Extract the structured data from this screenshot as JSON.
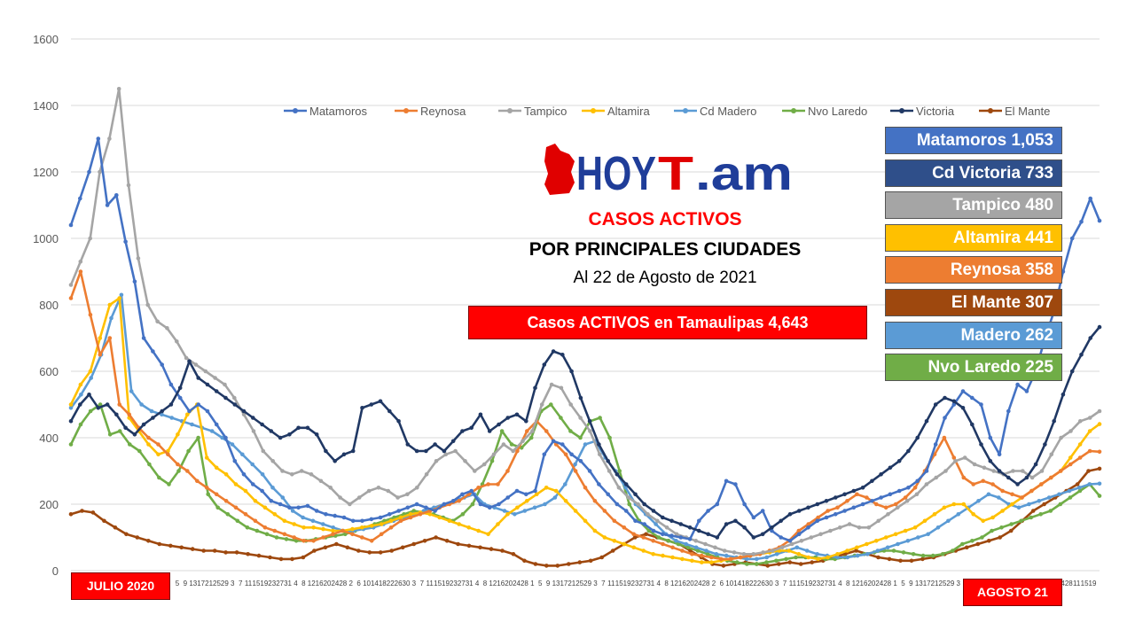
{
  "chart_data": {
    "type": "line",
    "ylim": [
      0,
      1600
    ],
    "yticks": [
      0,
      200,
      400,
      600,
      800,
      1000,
      1200,
      1400,
      1600
    ],
    "x_tick_labels": [
      "5",
      "9",
      "13",
      "17",
      "21",
      "25",
      "29",
      "3",
      "7",
      "11",
      "15",
      "19",
      "23",
      "27",
      "31",
      "4",
      "8",
      "12",
      "16",
      "20",
      "24",
      "28",
      "2",
      "6",
      "10",
      "14",
      "18",
      "22",
      "26",
      "30",
      "3",
      "7",
      "11",
      "15",
      "19",
      "23",
      "27",
      "31",
      "4",
      "8",
      "12",
      "16",
      "20",
      "24",
      "28",
      "1",
      "5",
      "9",
      "13",
      "17",
      "21",
      "25",
      "29",
      "3",
      "7",
      "11",
      "15",
      "19",
      "23",
      "27",
      "31",
      "4",
      "8",
      "12",
      "16",
      "20",
      "24",
      "28",
      "2",
      "6",
      "10",
      "14",
      "18",
      "22",
      "26",
      "30",
      "3",
      "7",
      "11",
      "15",
      "19",
      "23",
      "27",
      "31",
      "4",
      "8",
      "12",
      "16",
      "20",
      "24",
      "28",
      "1",
      "5",
      "9",
      "13",
      "17",
      "21",
      "25",
      "29",
      "3",
      "7",
      "11",
      "15",
      "19",
      "23",
      "27",
      "31",
      "4",
      "8",
      "12",
      "16",
      "20",
      "24",
      "28",
      "11",
      "15",
      "19"
    ],
    "grid": true,
    "legend_position": "top",
    "series": [
      {
        "name": "Matamoros",
        "color": "#4472c4",
        "values": [
          1040,
          1120,
          1200,
          1300,
          1100,
          1130,
          990,
          870,
          700,
          660,
          620,
          560,
          520,
          480,
          500,
          480,
          440,
          400,
          330,
          290,
          260,
          240,
          210,
          200,
          190,
          190,
          195,
          180,
          170,
          165,
          160,
          150,
          150,
          155,
          160,
          170,
          180,
          190,
          200,
          190,
          180,
          200,
          210,
          230,
          240,
          200,
          190,
          200,
          220,
          240,
          230,
          240,
          350,
          390,
          380,
          350,
          330,
          300,
          260,
          230,
          200,
          180,
          150,
          140,
          120,
          110,
          105,
          100,
          95,
          150,
          180,
          200,
          270,
          260,
          200,
          160,
          180,
          120,
          100,
          90,
          110,
          130,
          150,
          160,
          170,
          180,
          190,
          200,
          210,
          220,
          230,
          240,
          250,
          270,
          300,
          380,
          460,
          500,
          540,
          520,
          500,
          400,
          350,
          480,
          560,
          540,
          600,
          700,
          780,
          900,
          1000,
          1050,
          1120,
          1053
        ]
      },
      {
        "name": "Reynosa",
        "color": "#ed7d31",
        "values": [
          820,
          900,
          770,
          650,
          700,
          500,
          470,
          430,
          400,
          380,
          350,
          320,
          300,
          270,
          250,
          230,
          210,
          190,
          170,
          150,
          130,
          120,
          110,
          100,
          90,
          90,
          100,
          110,
          120,
          110,
          100,
          90,
          110,
          130,
          150,
          160,
          170,
          180,
          190,
          200,
          210,
          230,
          250,
          260,
          260,
          300,
          360,
          420,
          450,
          420,
          380,
          350,
          300,
          250,
          210,
          180,
          150,
          130,
          110,
          100,
          90,
          80,
          70,
          60,
          50,
          45,
          40,
          35,
          35,
          40,
          45,
          50,
          60,
          70,
          90,
          120,
          140,
          160,
          180,
          190,
          210,
          230,
          220,
          200,
          190,
          200,
          220,
          250,
          300,
          350,
          400,
          340,
          280,
          260,
          270,
          260,
          240,
          230,
          220,
          240,
          260,
          280,
          300,
          320,
          340,
          360,
          358
        ]
      },
      {
        "name": "Tampico",
        "color": "#a5a5a5",
        "values": [
          860,
          930,
          1000,
          1200,
          1300,
          1450,
          1160,
          940,
          800,
          750,
          730,
          690,
          640,
          620,
          600,
          580,
          560,
          520,
          470,
          420,
          360,
          330,
          300,
          290,
          300,
          290,
          270,
          250,
          220,
          200,
          220,
          240,
          250,
          240,
          220,
          230,
          250,
          290,
          330,
          350,
          360,
          330,
          300,
          320,
          350,
          380,
          360,
          390,
          420,
          500,
          560,
          550,
          500,
          460,
          420,
          350,
          300,
          250,
          220,
          200,
          170,
          150,
          130,
          110,
          100,
          90,
          80,
          70,
          60,
          55,
          50,
          50,
          55,
          60,
          70,
          80,
          90,
          100,
          110,
          120,
          130,
          140,
          130,
          130,
          150,
          170,
          190,
          210,
          230,
          260,
          280,
          300,
          330,
          340,
          320,
          310,
          300,
          290,
          300,
          300,
          280,
          300,
          350,
          400,
          420,
          450,
          460,
          480
        ]
      },
      {
        "name": "Altamira",
        "color": "#ffc000",
        "values": [
          500,
          560,
          600,
          700,
          800,
          820,
          460,
          420,
          380,
          350,
          360,
          410,
          470,
          500,
          340,
          310,
          290,
          260,
          240,
          210,
          190,
          170,
          150,
          140,
          130,
          130,
          125,
          120,
          120,
          125,
          130,
          135,
          140,
          150,
          160,
          170,
          175,
          170,
          160,
          150,
          140,
          130,
          120,
          110,
          140,
          170,
          190,
          210,
          230,
          250,
          240,
          210,
          180,
          150,
          120,
          100,
          90,
          80,
          70,
          60,
          50,
          45,
          40,
          35,
          30,
          25,
          25,
          30,
          35,
          40,
          45,
          50,
          55,
          60,
          60,
          50,
          40,
          35,
          40,
          50,
          60,
          70,
          80,
          90,
          100,
          110,
          120,
          130,
          150,
          170,
          190,
          200,
          200,
          170,
          150,
          160,
          180,
          200,
          220,
          240,
          260,
          280,
          300,
          340,
          380,
          420,
          441
        ]
      },
      {
        "name": "Cd Madero",
        "color": "#5b9bd5",
        "values": [
          490,
          530,
          580,
          650,
          760,
          830,
          540,
          500,
          480,
          470,
          460,
          450,
          440,
          430,
          420,
          400,
          380,
          350,
          320,
          290,
          250,
          220,
          180,
          160,
          150,
          140,
          130,
          120,
          120,
          125,
          130,
          140,
          150,
          160,
          170,
          180,
          190,
          200,
          210,
          220,
          230,
          200,
          190,
          180,
          170,
          180,
          190,
          200,
          220,
          260,
          320,
          380,
          390,
          340,
          300,
          250,
          200,
          170,
          140,
          110,
          90,
          80,
          70,
          60,
          50,
          45,
          40,
          35,
          35,
          40,
          50,
          60,
          70,
          60,
          50,
          45,
          40,
          40,
          45,
          50,
          60,
          70,
          80,
          90,
          100,
          110,
          130,
          150,
          170,
          190,
          210,
          230,
          220,
          200,
          190,
          200,
          210,
          220,
          230,
          240,
          250,
          260,
          262
        ]
      },
      {
        "name": "Nvo Laredo",
        "color": "#70ad47",
        "values": [
          380,
          440,
          480,
          500,
          410,
          420,
          380,
          360,
          320,
          280,
          260,
          300,
          360,
          400,
          230,
          190,
          170,
          150,
          130,
          120,
          110,
          100,
          95,
          90,
          90,
          95,
          100,
          105,
          110,
          120,
          130,
          140,
          150,
          160,
          170,
          180,
          175,
          170,
          160,
          150,
          170,
          200,
          260,
          330,
          420,
          380,
          370,
          400,
          480,
          500,
          460,
          420,
          400,
          450,
          460,
          400,
          300,
          200,
          150,
          120,
          100,
          90,
          80,
          70,
          60,
          50,
          40,
          30,
          25,
          20,
          20,
          25,
          30,
          35,
          40,
          40,
          40,
          35,
          35,
          40,
          45,
          50,
          55,
          60,
          60,
          55,
          50,
          45,
          45,
          50,
          60,
          80,
          90,
          100,
          120,
          130,
          140,
          150,
          160,
          170,
          180,
          200,
          220,
          240,
          260,
          225
        ]
      },
      {
        "name": "Victoria",
        "color": "#203864",
        "values": [
          450,
          500,
          530,
          490,
          500,
          470,
          430,
          410,
          440,
          460,
          480,
          500,
          550,
          630,
          580,
          560,
          540,
          520,
          500,
          480,
          460,
          440,
          420,
          400,
          410,
          430,
          430,
          410,
          360,
          330,
          350,
          360,
          490,
          500,
          510,
          480,
          450,
          380,
          360,
          360,
          380,
          360,
          390,
          420,
          430,
          470,
          420,
          440,
          460,
          470,
          450,
          550,
          620,
          660,
          650,
          600,
          520,
          450,
          380,
          330,
          290,
          260,
          230,
          200,
          180,
          160,
          150,
          140,
          130,
          120,
          110,
          100,
          140,
          150,
          130,
          100,
          110,
          130,
          150,
          170,
          180,
          190,
          200,
          210,
          220,
          230,
          240,
          250,
          270,
          290,
          310,
          330,
          360,
          400,
          450,
          500,
          520,
          510,
          490,
          440,
          380,
          330,
          300,
          280,
          260,
          280,
          320,
          380,
          450,
          530,
          600,
          650,
          700,
          733
        ]
      },
      {
        "name": "El Mante",
        "color": "#9e480e",
        "values": [
          170,
          180,
          175,
          150,
          130,
          110,
          100,
          90,
          80,
          75,
          70,
          65,
          60,
          60,
          55,
          55,
          50,
          45,
          40,
          35,
          35,
          40,
          60,
          70,
          80,
          70,
          60,
          55,
          55,
          60,
          70,
          80,
          90,
          100,
          90,
          80,
          75,
          70,
          65,
          60,
          50,
          30,
          20,
          15,
          15,
          20,
          25,
          30,
          40,
          60,
          80,
          100,
          110,
          100,
          90,
          80,
          60,
          40,
          20,
          15,
          20,
          25,
          20,
          15,
          20,
          25,
          20,
          25,
          30,
          40,
          50,
          60,
          50,
          40,
          35,
          30,
          30,
          35,
          40,
          50,
          60,
          70,
          80,
          90,
          100,
          120,
          150,
          180,
          200,
          220,
          240,
          260,
          300,
          307
        ]
      }
    ]
  },
  "logo": {
    "prefix": "HOY",
    "t": "T",
    "suffix": ".am"
  },
  "titles": {
    "line1": "CASOS ACTIVOS",
    "line2": "POR PRINCIPALES CIUDADES",
    "line3": "Al 22 de Agosto de 2021"
  },
  "total": "Casos ACTIVOS en Tamaulipas  4,643",
  "cities": [
    {
      "label": "Matamoros 1,053",
      "color": "#4472c4"
    },
    {
      "label": "Cd Victoria 733",
      "color": "#2f4f8a"
    },
    {
      "label": "Tampico 480",
      "color": "#a5a5a5"
    },
    {
      "label": "Altamira 441",
      "color": "#ffc000"
    },
    {
      "label": "Reynosa 358",
      "color": "#ed7d31"
    },
    {
      "label": "El Mante 307",
      "color": "#9e480e"
    },
    {
      "label": "Madero 262",
      "color": "#5b9bd5"
    },
    {
      "label": "Nvo Laredo 225",
      "color": "#70ad47"
    }
  ],
  "start_label": "JULIO 2020",
  "end_label": "AGOSTO 21"
}
